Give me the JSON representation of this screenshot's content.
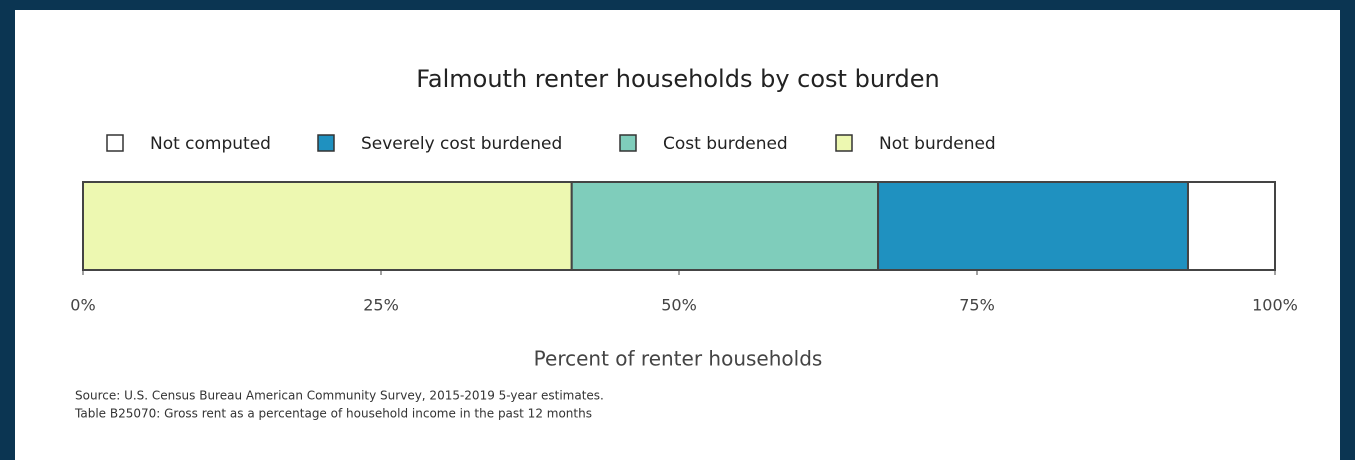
{
  "chart_data": {
    "type": "bar",
    "orientation": "horizontal",
    "stacked": true,
    "title": "Falmouth renter households by cost burden",
    "xlabel": "Percent of renter households",
    "source": [
      "Source: U.S. Census Bureau American Community Survey, 2015-2019 5-year estimates.",
      "Table B25070: Gross rent as a percentage of household income in the past 12 months"
    ],
    "categories": [
      null
    ],
    "series": [
      {
        "name": "Not computed",
        "color": "#ffffff",
        "values": [
          7.3
        ]
      },
      {
        "name": "Severely cost burdened",
        "color": "#1f91c0",
        "values": [
          26.0
        ]
      },
      {
        "name": "Cost burdened",
        "color": "#7fcdbb",
        "values": [
          25.7
        ]
      },
      {
        "name": "Not burdened",
        "color": "#edf8b1",
        "values": [
          41.0
        ]
      }
    ],
    "xlim": [
      0,
      100
    ],
    "xticks": [
      {
        "value": 0,
        "label": "0%"
      },
      {
        "value": 25,
        "label": "25%"
      },
      {
        "value": 50,
        "label": "50%"
      },
      {
        "value": 75,
        "label": "75%"
      },
      {
        "value": 100,
        "label": "100%"
      }
    ],
    "legend": "top"
  }
}
